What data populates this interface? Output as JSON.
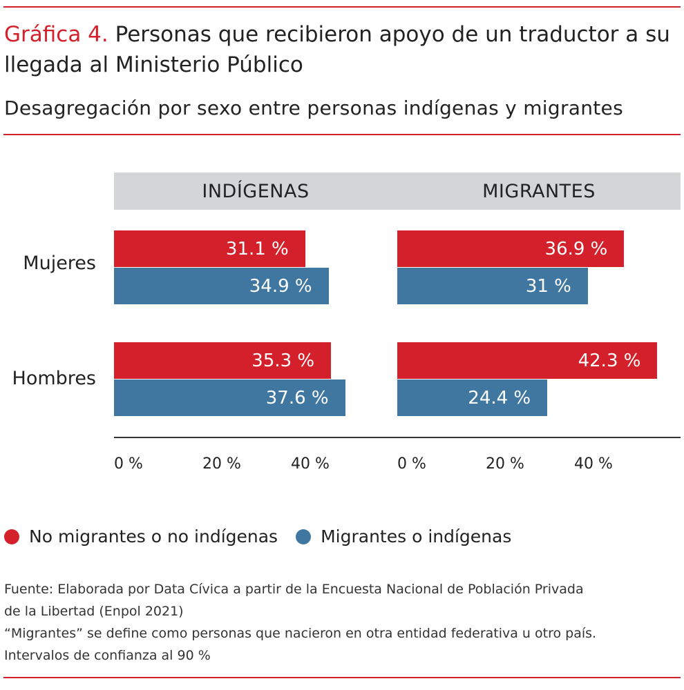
{
  "title": {
    "number": "Gráfica 4.",
    "text": "Personas que recibieron apoyo de un traductor a su llegada al Ministerio Público"
  },
  "subtitle": "Desagregación por sexo entre personas indígenas y migrantes",
  "colors": {
    "accent": "#d4202a",
    "no_group": "#d4202a",
    "group": "#3f77a0"
  },
  "chart_data": [
    {
      "type": "bar",
      "orientation": "horizontal",
      "title": "INDÍGENAS",
      "categories": [
        "Mujeres",
        "Hombres"
      ],
      "series": [
        {
          "name": "No migrantes o no indígenas",
          "values": [
            31.1,
            35.3
          ],
          "labels": [
            "31.1 %",
            "35.3 %"
          ]
        },
        {
          "name": "Migrantes o indígenas",
          "values": [
            34.9,
            37.6
          ],
          "labels": [
            "34.9 %",
            "37.6 %"
          ]
        }
      ],
      "xticks": [
        {
          "v": 0,
          "label": "0 %"
        },
        {
          "v": 20,
          "label": "20 %"
        },
        {
          "v": 40,
          "label": "40 %"
        }
      ],
      "xlim": [
        0,
        45
      ]
    },
    {
      "type": "bar",
      "orientation": "horizontal",
      "title": "MIGRANTES",
      "categories": [
        "Mujeres",
        "Hombres"
      ],
      "series": [
        {
          "name": "No migrantes o no indígenas",
          "values": [
            36.9,
            42.3
          ],
          "labels": [
            "36.9 %",
            "42.3 %"
          ]
        },
        {
          "name": "Migrantes o indígenas",
          "values": [
            31,
            24.4
          ],
          "labels": [
            "31 %",
            "24.4 %"
          ]
        }
      ],
      "xticks": [
        {
          "v": 0,
          "label": "0 %"
        },
        {
          "v": 20,
          "label": "20 %"
        },
        {
          "v": 40,
          "label": "40 %"
        }
      ],
      "xlim": [
        0,
        45
      ]
    }
  ],
  "legend": [
    "No migrantes o no indígenas",
    "Migrantes o indígenas"
  ],
  "footnotes": [
    "Fuente: Elaborada por Data Cívica a partir de la Encuesta Nacional de Población Privada",
    "de la Libertad (Enpol 2021)",
    "“Migrantes” se define como personas que nacieron en otra entidad federativa u otro país.",
    "Intervalos de confianza al 90 %"
  ]
}
